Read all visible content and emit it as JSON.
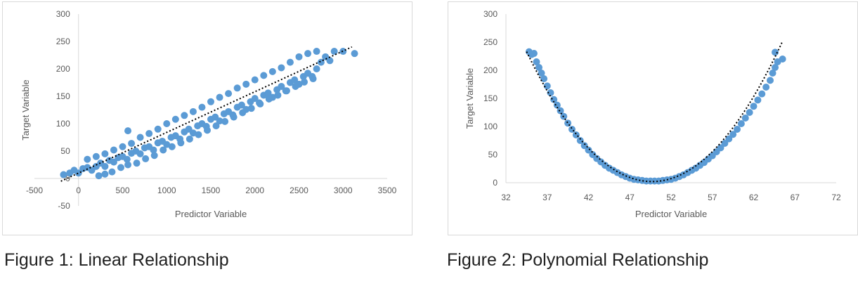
{
  "captions": {
    "figure1": "Figure 1: Linear Relationship",
    "figure2": "Figure 2: Polynomial Relationship"
  },
  "chart_data": [
    {
      "type": "scatter",
      "title": "",
      "xlabel": "Predictor Variable",
      "ylabel": "Target Variable",
      "xlim": [
        -500,
        3500
      ],
      "ylim": [
        -50,
        300
      ],
      "xticks": [
        -500,
        0,
        500,
        1000,
        1500,
        2000,
        2500,
        3000,
        3500
      ],
      "yticks": [
        -50,
        0,
        50,
        100,
        150,
        200,
        250,
        300
      ],
      "grid": false,
      "legend": "none",
      "marker_color": "#5b9bd5",
      "trendline": {
        "type": "linear",
        "style": "dotted",
        "color": "#000000",
        "points": [
          [
            -200,
            -5
          ],
          [
            3100,
            240
          ]
        ]
      },
      "series": [
        {
          "points": [
            [
              -170,
              7
            ],
            [
              -100,
              10
            ],
            [
              -50,
              15
            ],
            [
              0,
              10
            ],
            [
              50,
              18
            ],
            [
              100,
              20
            ],
            [
              150,
              15
            ],
            [
              200,
              22
            ],
            [
              250,
              28
            ],
            [
              300,
              22
            ],
            [
              350,
              33
            ],
            [
              400,
              30
            ],
            [
              450,
              38
            ],
            [
              500,
              40
            ],
            [
              550,
              35
            ],
            [
              600,
              46
            ],
            [
              650,
              50
            ],
            [
              700,
              45
            ],
            [
              750,
              56
            ],
            [
              800,
              58
            ],
            [
              850,
              52
            ],
            [
              900,
              65
            ],
            [
              950,
              68
            ],
            [
              1000,
              62
            ],
            [
              1050,
              75
            ],
            [
              1100,
              78
            ],
            [
              1150,
              72
            ],
            [
              1200,
              85
            ],
            [
              1250,
              90
            ],
            [
              1300,
              83
            ],
            [
              1350,
              96
            ],
            [
              1400,
              100
            ],
            [
              1450,
              95
            ],
            [
              1500,
              108
            ],
            [
              1550,
              112
            ],
            [
              1600,
              105
            ],
            [
              1650,
              118
            ],
            [
              1700,
              122
            ],
            [
              1750,
              116
            ],
            [
              1800,
              130
            ],
            [
              1850,
              134
            ],
            [
              1900,
              126
            ],
            [
              1950,
              140
            ],
            [
              2000,
              146
            ],
            [
              2050,
              138
            ],
            [
              2100,
              152
            ],
            [
              2150,
              156
            ],
            [
              2200,
              148
            ],
            [
              2250,
              162
            ],
            [
              2300,
              168
            ],
            [
              2350,
              160
            ],
            [
              2400,
              175
            ],
            [
              2450,
              180
            ],
            [
              2500,
              172
            ],
            [
              2550,
              186
            ],
            [
              2600,
              192
            ],
            [
              2650,
              186
            ],
            [
              2700,
              200
            ],
            [
              2750,
              212
            ],
            [
              2800,
              222
            ],
            [
              2850,
              215
            ],
            [
              2900,
              232
            ],
            [
              3000,
              232
            ],
            [
              3130,
              228
            ],
            [
              230,
              5
            ],
            [
              300,
              8
            ],
            [
              380,
              12
            ],
            [
              480,
              20
            ],
            [
              560,
              25
            ],
            [
              660,
              28
            ],
            [
              760,
              36
            ],
            [
              860,
              42
            ],
            [
              960,
              52
            ],
            [
              1060,
              58
            ],
            [
              1160,
              65
            ],
            [
              1260,
              72
            ],
            [
              1360,
              80
            ],
            [
              1460,
              88
            ],
            [
              1560,
              96
            ],
            [
              1660,
              104
            ],
            [
              1760,
              112
            ],
            [
              1860,
              120
            ],
            [
              1960,
              128
            ],
            [
              2060,
              136
            ],
            [
              2160,
              145
            ],
            [
              2260,
              152
            ],
            [
              2360,
              160
            ],
            [
              2460,
              168
            ],
            [
              2560,
              176
            ],
            [
              2660,
              182
            ],
            [
              100,
              35
            ],
            [
              200,
              40
            ],
            [
              300,
              45
            ],
            [
              400,
              52
            ],
            [
              500,
              58
            ],
            [
              560,
              87
            ],
            [
              600,
              64
            ],
            [
              700,
              75
            ],
            [
              800,
              82
            ],
            [
              900,
              90
            ],
            [
              1000,
              100
            ],
            [
              1100,
              108
            ],
            [
              1200,
              115
            ],
            [
              1300,
              122
            ],
            [
              1400,
              130
            ],
            [
              1500,
              140
            ],
            [
              1600,
              148
            ],
            [
              1700,
              155
            ],
            [
              1800,
              165
            ],
            [
              1900,
              172
            ],
            [
              2000,
              180
            ],
            [
              2100,
              188
            ],
            [
              2200,
              195
            ],
            [
              2300,
              202
            ],
            [
              2400,
              212
            ],
            [
              2500,
              222
            ],
            [
              2600,
              228
            ],
            [
              2700,
              232
            ]
          ]
        }
      ]
    },
    {
      "type": "scatter",
      "title": "",
      "xlabel": "Predictor Variable",
      "ylabel": "Target Variable",
      "xlim": [
        32,
        72
      ],
      "ylim": [
        0,
        300
      ],
      "xticks": [
        32,
        37,
        42,
        47,
        52,
        57,
        62,
        67,
        72
      ],
      "yticks": [
        0,
        50,
        100,
        150,
        200,
        250,
        300
      ],
      "grid": false,
      "legend": "none",
      "marker_color": "#5b9bd5",
      "trendline": {
        "type": "polynomial",
        "order": 2,
        "style": "dotted",
        "color": "#000000",
        "vertex": [
          49.7,
          2
        ],
        "coefficient": 1.0,
        "range": [
          34.5,
          65.5
        ]
      },
      "series": [
        {
          "points": [
            [
              34.8,
              233
            ],
            [
              35.1,
              228
            ],
            [
              35.4,
              230
            ],
            [
              35.7,
              215
            ],
            [
              36.0,
              205
            ],
            [
              36.3,
              195
            ],
            [
              36.6,
              185
            ],
            [
              37.0,
              172
            ],
            [
              37.4,
              160
            ],
            [
              37.8,
              148
            ],
            [
              38.2,
              138
            ],
            [
              38.6,
              128
            ],
            [
              39.0,
              118
            ],
            [
              39.5,
              106
            ],
            [
              40.0,
              95
            ],
            [
              40.5,
              85
            ],
            [
              41.0,
              75
            ],
            [
              41.5,
              66
            ],
            [
              42.0,
              58
            ],
            [
              42.5,
              50
            ],
            [
              43.0,
              43
            ],
            [
              43.5,
              37
            ],
            [
              44.0,
              31
            ],
            [
              44.5,
              26
            ],
            [
              45.0,
              22
            ],
            [
              45.5,
              18
            ],
            [
              46.0,
              14
            ],
            [
              46.5,
              11
            ],
            [
              47.0,
              8
            ],
            [
              47.5,
              6
            ],
            [
              48.0,
              5
            ],
            [
              48.5,
              4
            ],
            [
              49.0,
              3
            ],
            [
              49.5,
              3
            ],
            [
              50.0,
              3
            ],
            [
              50.5,
              3
            ],
            [
              51.0,
              4
            ],
            [
              51.5,
              5
            ],
            [
              52.0,
              6
            ],
            [
              52.5,
              8
            ],
            [
              53.0,
              11
            ],
            [
              53.5,
              14
            ],
            [
              54.0,
              18
            ],
            [
              54.5,
              22
            ],
            [
              55.0,
              26
            ],
            [
              55.5,
              31
            ],
            [
              56.0,
              36
            ],
            [
              56.5,
              42
            ],
            [
              57.0,
              48
            ],
            [
              57.5,
              55
            ],
            [
              58.0,
              62
            ],
            [
              58.5,
              70
            ],
            [
              59.0,
              78
            ],
            [
              59.5,
              86
            ],
            [
              60.0,
              95
            ],
            [
              60.5,
              105
            ],
            [
              61.0,
              115
            ],
            [
              61.5,
              125
            ],
            [
              62.0,
              136
            ],
            [
              62.5,
              147
            ],
            [
              63.0,
              158
            ],
            [
              63.5,
              170
            ],
            [
              64.0,
              182
            ],
            [
              64.3,
              195
            ],
            [
              64.6,
              205
            ],
            [
              64.9,
              215
            ],
            [
              64.6,
              232
            ],
            [
              65.5,
              220
            ]
          ]
        }
      ]
    }
  ]
}
